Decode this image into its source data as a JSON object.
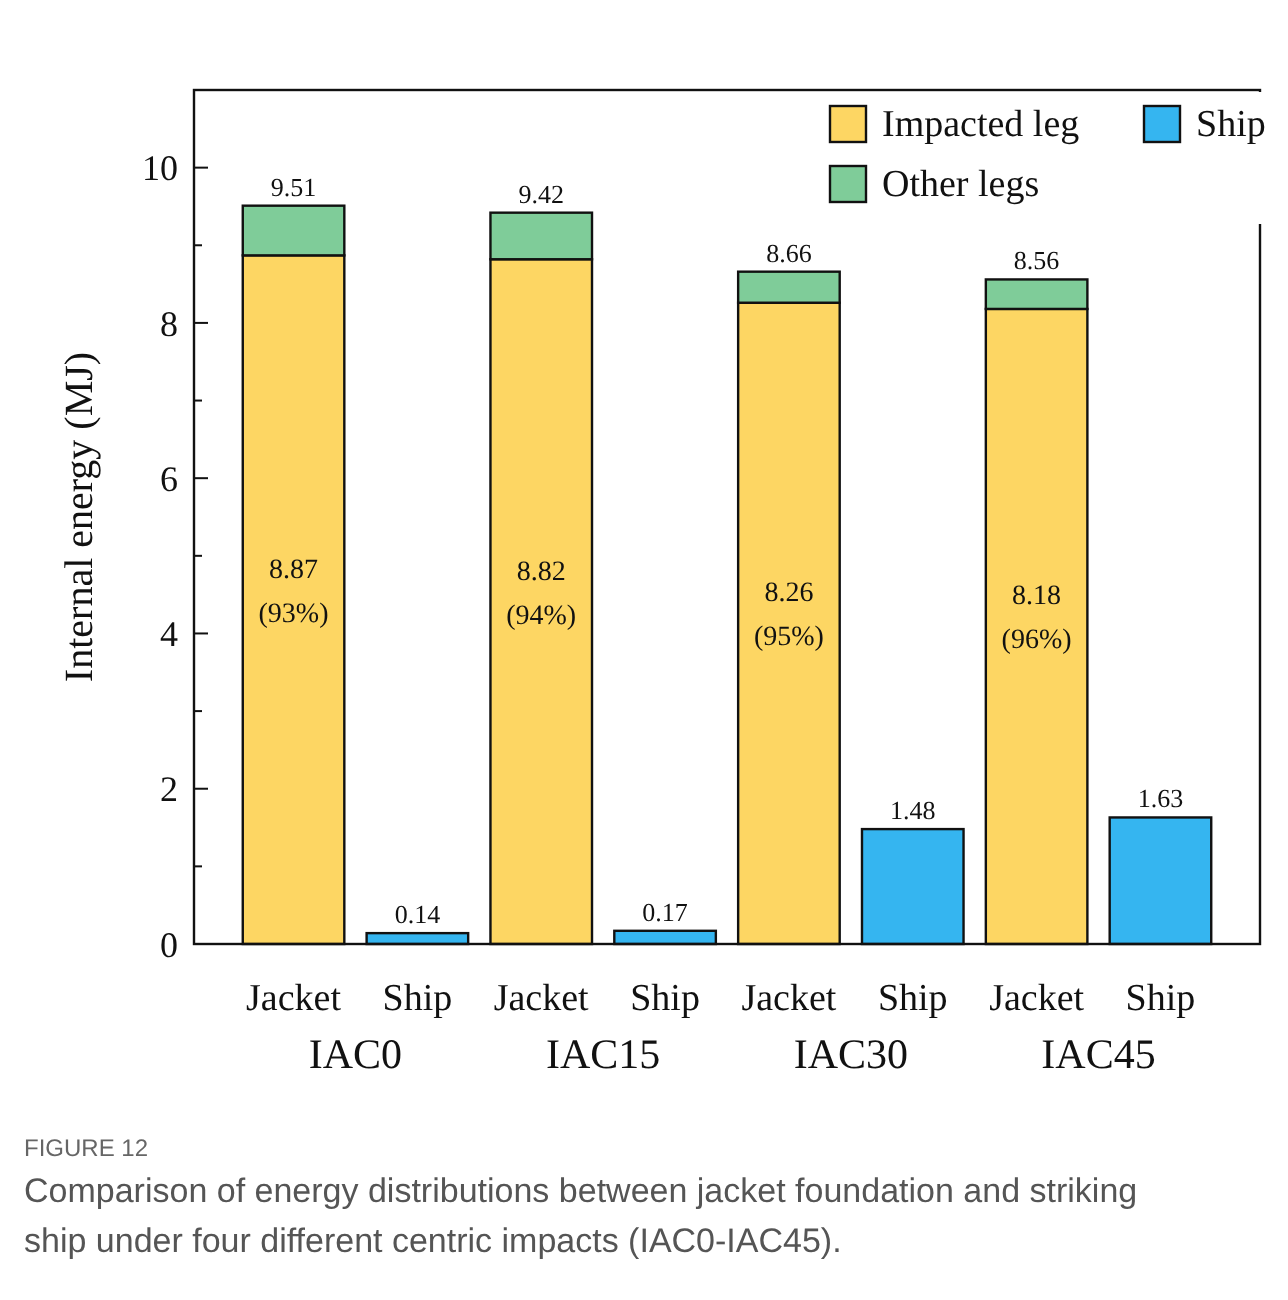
{
  "chart_data": {
    "type": "bar",
    "title": "FIGURE 12",
    "subtitle": "Comparison of energy distributions between jacket foundation and striking ship under four different centric impacts (IAC0-IAC45).",
    "ylabel": "Internal energy (MJ)",
    "categories": [
      "Jacket",
      "Ship",
      "Jacket",
      "Ship",
      "Jacket",
      "Ship",
      "Jacket",
      "Ship"
    ],
    "annotations": [
      "IAC0",
      "IAC15",
      "IAC30",
      "IAC45"
    ],
    "stacked": true,
    "series": [
      {
        "name": "Impacted leg",
        "color": "#fdd663",
        "values": [
          8.87,
          null,
          8.82,
          null,
          8.26,
          null,
          8.18,
          null
        ],
        "value_labels": [
          "8.87 (93%)",
          null,
          "8.82 (94%)",
          null,
          "8.26 (95%)",
          null,
          "8.18 (96%)",
          null
        ]
      },
      {
        "name": "Other legs",
        "color": "#7fcc99",
        "values": [
          0.64,
          null,
          0.6,
          null,
          0.4,
          null,
          0.38,
          null
        ]
      },
      {
        "name": "Ship",
        "color": "#35b5f0",
        "values": [
          null,
          0.14,
          null,
          0.17,
          null,
          1.48,
          null,
          1.63
        ]
      }
    ],
    "totals": [
      "9.51",
      "0.14",
      "9.42",
      "0.17",
      "8.66",
      "1.48",
      "8.56",
      "1.63"
    ],
    "ylim": [
      0,
      11
    ],
    "yticks": [
      0,
      {
        "value": 1,
        "label": null
      },
      2,
      {
        "value": 3,
        "label": null
      },
      4,
      {
        "value": 5,
        "label": null
      },
      6,
      {
        "value": 7,
        "label": null
      },
      8,
      {
        "value": 9,
        "label": null
      },
      10,
      {
        "value": 11,
        "label": null
      }
    ],
    "grid": false,
    "legend": "top right"
  }
}
